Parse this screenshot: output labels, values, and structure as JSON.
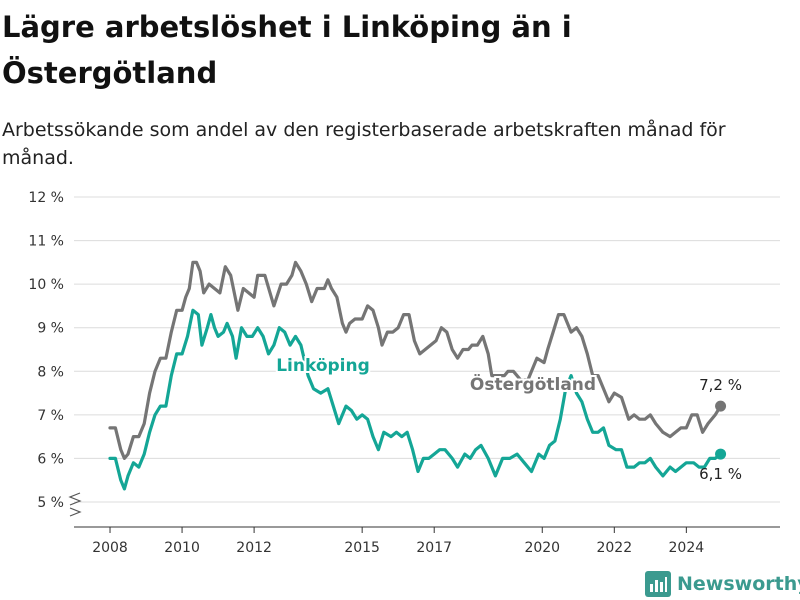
{
  "title": "Lägre arbetslöshet i Linköping än i Östergötland",
  "subtitle": "Arbetssökande som andel av den registerbaserade arbetskraften månad för månad.",
  "brand": "Newsworthy",
  "colors": {
    "linkoping": "#14a696",
    "ostergotland": "#757575",
    "grid": "#dcdcdc",
    "brand": "#3b9a8f"
  },
  "chart_data": {
    "type": "line",
    "title": "Lägre arbetslöshet i Linköping än i Östergötland",
    "subtitle": "Arbetssökande som andel av den registerbaserade arbetskraften månad för månad.",
    "xlabel": "",
    "ylabel": "",
    "xlim": [
      2007.0,
      2026.6
    ],
    "ylim": [
      5,
      12
    ],
    "y_axis_break": true,
    "grid": "horizontal",
    "x_ticks": [
      {
        "value": 2008,
        "label": "2008"
      },
      {
        "value": 2010,
        "label": "2010"
      },
      {
        "value": 2012,
        "label": "2012"
      },
      {
        "value": 2015,
        "label": "2015"
      },
      {
        "value": 2017,
        "label": "2017"
      },
      {
        "value": 2020,
        "label": "2020"
      },
      {
        "value": 2022,
        "label": "2022"
      },
      {
        "value": 2024,
        "label": "2024"
      }
    ],
    "y_ticks": [
      {
        "value": 5,
        "label": "5 %"
      },
      {
        "value": 6,
        "label": "6 %"
      },
      {
        "value": 7,
        "label": "7 %"
      },
      {
        "value": 8,
        "label": "8 %"
      },
      {
        "value": 9,
        "label": "9 %"
      },
      {
        "value": 10,
        "label": "10 %"
      },
      {
        "value": 11,
        "label": "11 %"
      },
      {
        "value": 12,
        "label": "12 %"
      }
    ],
    "series": [
      {
        "name": "Östergötland",
        "color": "#757575",
        "end_label": "7,2 %",
        "points": [
          [
            2008.0,
            6.7
          ],
          [
            2008.15,
            6.7
          ],
          [
            2008.3,
            6.2
          ],
          [
            2008.4,
            6.0
          ],
          [
            2008.5,
            6.1
          ],
          [
            2008.65,
            6.5
          ],
          [
            2008.8,
            6.5
          ],
          [
            2008.95,
            6.8
          ],
          [
            2009.1,
            7.5
          ],
          [
            2009.25,
            8.0
          ],
          [
            2009.4,
            8.3
          ],
          [
            2009.55,
            8.3
          ],
          [
            2009.7,
            8.9
          ],
          [
            2009.85,
            9.4
          ],
          [
            2010.0,
            9.4
          ],
          [
            2010.1,
            9.7
          ],
          [
            2010.2,
            9.9
          ],
          [
            2010.3,
            10.5
          ],
          [
            2010.4,
            10.5
          ],
          [
            2010.5,
            10.3
          ],
          [
            2010.6,
            9.8
          ],
          [
            2010.75,
            10.0
          ],
          [
            2010.9,
            9.9
          ],
          [
            2011.05,
            9.8
          ],
          [
            2011.2,
            10.4
          ],
          [
            2011.35,
            10.2
          ],
          [
            2011.55,
            9.4
          ],
          [
            2011.7,
            9.9
          ],
          [
            2011.85,
            9.8
          ],
          [
            2012.0,
            9.7
          ],
          [
            2012.1,
            10.2
          ],
          [
            2012.3,
            10.2
          ],
          [
            2012.55,
            9.5
          ],
          [
            2012.75,
            10.0
          ],
          [
            2012.9,
            10.0
          ],
          [
            2013.05,
            10.2
          ],
          [
            2013.15,
            10.5
          ],
          [
            2013.3,
            10.3
          ],
          [
            2013.45,
            10.0
          ],
          [
            2013.6,
            9.6
          ],
          [
            2013.75,
            9.9
          ],
          [
            2013.95,
            9.9
          ],
          [
            2014.05,
            10.1
          ],
          [
            2014.15,
            9.9
          ],
          [
            2014.3,
            9.7
          ],
          [
            2014.45,
            9.1
          ],
          [
            2014.55,
            8.9
          ],
          [
            2014.65,
            9.1
          ],
          [
            2014.8,
            9.2
          ],
          [
            2015.0,
            9.2
          ],
          [
            2015.15,
            9.5
          ],
          [
            2015.3,
            9.4
          ],
          [
            2015.45,
            9.0
          ],
          [
            2015.55,
            8.6
          ],
          [
            2015.7,
            8.9
          ],
          [
            2015.85,
            8.9
          ],
          [
            2016.0,
            9.0
          ],
          [
            2016.15,
            9.3
          ],
          [
            2016.3,
            9.3
          ],
          [
            2016.45,
            8.7
          ],
          [
            2016.6,
            8.4
          ],
          [
            2016.75,
            8.5
          ],
          [
            2016.9,
            8.6
          ],
          [
            2017.05,
            8.7
          ],
          [
            2017.2,
            9.0
          ],
          [
            2017.35,
            8.9
          ],
          [
            2017.5,
            8.5
          ],
          [
            2017.65,
            8.3
          ],
          [
            2017.8,
            8.5
          ],
          [
            2017.95,
            8.5
          ],
          [
            2018.05,
            8.6
          ],
          [
            2018.2,
            8.6
          ],
          [
            2018.35,
            8.8
          ],
          [
            2018.5,
            8.4
          ],
          [
            2018.6,
            7.9
          ],
          [
            2018.7,
            7.9
          ],
          [
            2018.8,
            7.9
          ],
          [
            2018.95,
            7.9
          ],
          [
            2019.05,
            8.0
          ],
          [
            2019.2,
            8.0
          ],
          [
            2019.4,
            7.8
          ],
          [
            2019.6,
            7.8
          ],
          [
            2019.85,
            8.3
          ],
          [
            2020.05,
            8.2
          ],
          [
            2020.15,
            8.5
          ],
          [
            2020.3,
            8.9
          ],
          [
            2020.45,
            9.3
          ],
          [
            2020.6,
            9.3
          ],
          [
            2020.8,
            8.9
          ],
          [
            2020.95,
            9.0
          ],
          [
            2021.1,
            8.8
          ],
          [
            2021.25,
            8.4
          ],
          [
            2021.4,
            7.9
          ],
          [
            2021.55,
            7.9
          ],
          [
            2021.7,
            7.6
          ],
          [
            2021.85,
            7.3
          ],
          [
            2022.0,
            7.5
          ],
          [
            2022.2,
            7.4
          ],
          [
            2022.4,
            6.9
          ],
          [
            2022.55,
            7.0
          ],
          [
            2022.7,
            6.9
          ],
          [
            2022.85,
            6.9
          ],
          [
            2023.0,
            7.0
          ],
          [
            2023.15,
            6.8
          ],
          [
            2023.35,
            6.6
          ],
          [
            2023.55,
            6.5
          ],
          [
            2023.7,
            6.6
          ],
          [
            2023.85,
            6.7
          ],
          [
            2024.0,
            6.7
          ],
          [
            2024.15,
            7.0
          ],
          [
            2024.3,
            7.0
          ],
          [
            2024.45,
            6.6
          ],
          [
            2024.6,
            6.8
          ],
          [
            2024.8,
            7.0
          ],
          [
            2024.95,
            7.2
          ]
        ]
      },
      {
        "name": "Linköping",
        "color": "#14a696",
        "end_label": "6,1 %",
        "points": [
          [
            2008.0,
            6.0
          ],
          [
            2008.15,
            6.0
          ],
          [
            2008.3,
            5.5
          ],
          [
            2008.4,
            5.3
          ],
          [
            2008.5,
            5.6
          ],
          [
            2008.65,
            5.9
          ],
          [
            2008.8,
            5.8
          ],
          [
            2008.95,
            6.1
          ],
          [
            2009.1,
            6.6
          ],
          [
            2009.25,
            7.0
          ],
          [
            2009.4,
            7.2
          ],
          [
            2009.55,
            7.2
          ],
          [
            2009.7,
            7.9
          ],
          [
            2009.85,
            8.4
          ],
          [
            2010.0,
            8.4
          ],
          [
            2010.15,
            8.8
          ],
          [
            2010.3,
            9.4
          ],
          [
            2010.45,
            9.3
          ],
          [
            2010.55,
            8.6
          ],
          [
            2010.7,
            9.0
          ],
          [
            2010.8,
            9.3
          ],
          [
            2010.9,
            9.0
          ],
          [
            2011.0,
            8.8
          ],
          [
            2011.15,
            8.9
          ],
          [
            2011.25,
            9.1
          ],
          [
            2011.4,
            8.8
          ],
          [
            2011.5,
            8.3
          ],
          [
            2011.65,
            9.0
          ],
          [
            2011.8,
            8.8
          ],
          [
            2011.95,
            8.8
          ],
          [
            2012.1,
            9.0
          ],
          [
            2012.25,
            8.8
          ],
          [
            2012.4,
            8.4
          ],
          [
            2012.55,
            8.6
          ],
          [
            2012.7,
            9.0
          ],
          [
            2012.85,
            8.9
          ],
          [
            2013.0,
            8.6
          ],
          [
            2013.15,
            8.8
          ],
          [
            2013.3,
            8.6
          ],
          [
            2013.5,
            7.9
          ],
          [
            2013.65,
            7.6
          ],
          [
            2013.85,
            7.5
          ],
          [
            2014.05,
            7.6
          ],
          [
            2014.2,
            7.2
          ],
          [
            2014.35,
            6.8
          ],
          [
            2014.55,
            7.2
          ],
          [
            2014.7,
            7.1
          ],
          [
            2014.85,
            6.9
          ],
          [
            2015.0,
            7.0
          ],
          [
            2015.15,
            6.9
          ],
          [
            2015.3,
            6.5
          ],
          [
            2015.45,
            6.2
          ],
          [
            2015.6,
            6.6
          ],
          [
            2015.8,
            6.5
          ],
          [
            2015.95,
            6.6
          ],
          [
            2016.1,
            6.5
          ],
          [
            2016.25,
            6.6
          ],
          [
            2016.4,
            6.2
          ],
          [
            2016.55,
            5.7
          ],
          [
            2016.7,
            6.0
          ],
          [
            2016.85,
            6.0
          ],
          [
            2017.0,
            6.1
          ],
          [
            2017.15,
            6.2
          ],
          [
            2017.3,
            6.2
          ],
          [
            2017.5,
            6.0
          ],
          [
            2017.65,
            5.8
          ],
          [
            2017.85,
            6.1
          ],
          [
            2018.0,
            6.0
          ],
          [
            2018.15,
            6.2
          ],
          [
            2018.3,
            6.3
          ],
          [
            2018.5,
            6.0
          ],
          [
            2018.7,
            5.6
          ],
          [
            2018.9,
            6.0
          ],
          [
            2019.1,
            6.0
          ],
          [
            2019.3,
            6.1
          ],
          [
            2019.5,
            5.9
          ],
          [
            2019.7,
            5.7
          ],
          [
            2019.9,
            6.1
          ],
          [
            2020.05,
            6.0
          ],
          [
            2020.2,
            6.3
          ],
          [
            2020.35,
            6.4
          ],
          [
            2020.5,
            6.9
          ],
          [
            2020.65,
            7.6
          ],
          [
            2020.8,
            7.9
          ],
          [
            2020.95,
            7.5
          ],
          [
            2021.1,
            7.3
          ],
          [
            2021.25,
            6.9
          ],
          [
            2021.4,
            6.6
          ],
          [
            2021.55,
            6.6
          ],
          [
            2021.7,
            6.7
          ],
          [
            2021.85,
            6.3
          ],
          [
            2022.05,
            6.2
          ],
          [
            2022.2,
            6.2
          ],
          [
            2022.35,
            5.8
          ],
          [
            2022.55,
            5.8
          ],
          [
            2022.7,
            5.9
          ],
          [
            2022.85,
            5.9
          ],
          [
            2023.0,
            6.0
          ],
          [
            2023.15,
            5.8
          ],
          [
            2023.35,
            5.6
          ],
          [
            2023.55,
            5.8
          ],
          [
            2023.7,
            5.7
          ],
          [
            2023.85,
            5.8
          ],
          [
            2024.0,
            5.9
          ],
          [
            2024.2,
            5.9
          ],
          [
            2024.35,
            5.8
          ],
          [
            2024.5,
            5.8
          ],
          [
            2024.65,
            6.0
          ],
          [
            2024.8,
            6.0
          ],
          [
            2024.95,
            6.1
          ]
        ]
      }
    ]
  }
}
